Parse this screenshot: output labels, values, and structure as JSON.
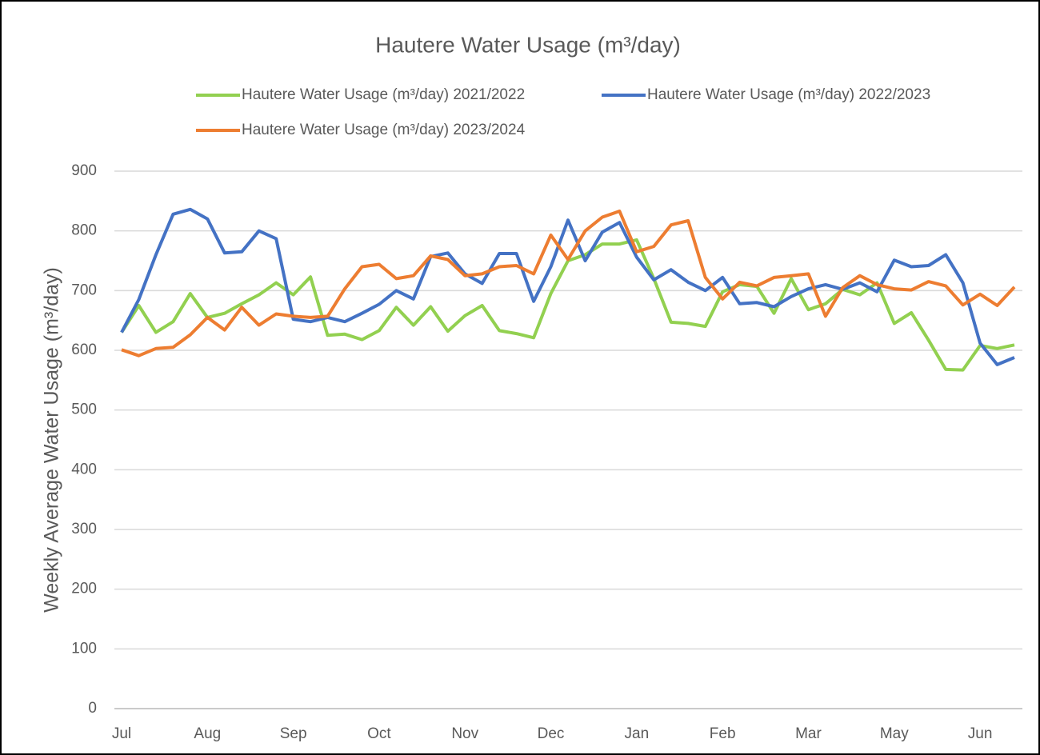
{
  "chart_data": {
    "type": "line",
    "title": "Hautere Water Usage (m³/day)",
    "y_label": "Weekly Average Water Usage (m³/day)",
    "categories": [
      "Jul",
      null,
      null,
      null,
      null,
      "Aug",
      null,
      null,
      null,
      null,
      "Sep",
      null,
      null,
      null,
      null,
      "Oct",
      null,
      null,
      null,
      null,
      "Nov",
      null,
      null,
      null,
      null,
      "Dec",
      null,
      null,
      null,
      null,
      "Jan",
      null,
      null,
      null,
      null,
      "Feb",
      null,
      null,
      null,
      null,
      "Mar",
      null,
      null,
      null,
      null,
      "May",
      null,
      null,
      null,
      null,
      "Jun",
      null,
      null
    ],
    "series": [
      {
        "name": "Hautere Water Usage (m³/day) 2021/2022",
        "color": "#92d050",
        "values": [
          630,
          675,
          630,
          648,
          695,
          655,
          662,
          678,
          693,
          713,
          693,
          723,
          625,
          627,
          618,
          633,
          672,
          642,
          673,
          632,
          658,
          675,
          633,
          628,
          621,
          695,
          750,
          760,
          778,
          778,
          785,
          720,
          647,
          645,
          640,
          698,
          710,
          707,
          662,
          720,
          668,
          678,
          702,
          693,
          713,
          645,
          663,
          617,
          568,
          567,
          608,
          603,
          609
        ]
      },
      {
        "name": "Hautere Water Usage (m³/day) 2022/2023",
        "color": "#4472c4",
        "values": [
          630,
          685,
          760,
          828,
          836,
          820,
          763,
          765,
          800,
          787,
          652,
          648,
          655,
          648,
          662,
          677,
          700,
          686,
          757,
          763,
          728,
          712,
          762,
          762,
          682,
          740,
          818,
          750,
          798,
          814,
          756,
          718,
          735,
          714,
          700,
          722,
          678,
          680,
          673,
          690,
          703,
          710,
          702,
          713,
          698,
          751,
          740,
          742,
          760,
          713,
          612,
          576,
          588
        ]
      },
      {
        "name": "Hautere Water Usage (m³/day) 2023/2024",
        "color": "#ed7d31",
        "values": [
          601,
          591,
          603,
          605,
          626,
          655,
          634,
          672,
          642,
          661,
          657,
          655,
          657,
          703,
          740,
          744,
          720,
          725,
          758,
          752,
          725,
          728,
          740,
          742,
          728,
          793,
          752,
          800,
          823,
          833,
          765,
          774,
          810,
          817,
          722,
          686,
          714,
          708,
          722,
          725,
          728,
          657,
          705,
          725,
          710,
          703,
          701,
          715,
          708,
          676,
          694,
          675,
          706
        ]
      }
    ],
    "ylim": [
      0,
      900
    ],
    "yticks": [
      0,
      100,
      200,
      300,
      400,
      500,
      600,
      700,
      800,
      900
    ],
    "grid": true
  }
}
